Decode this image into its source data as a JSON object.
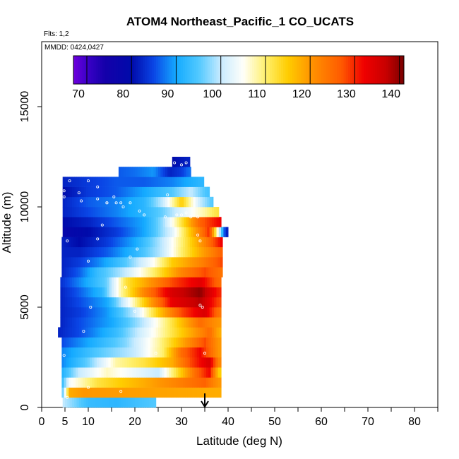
{
  "chart_data": {
    "type": "heatmap",
    "title": "ATOM4 Northeast_Pacific_1 CO_UCATS",
    "flights_label": "Flts: 1,2",
    "dates_label": "MMDD: 0424,0427",
    "xlabel": "Latitude (deg N)",
    "ylabel": "Altitude (m)",
    "xlim": [
      0,
      85
    ],
    "ylim": [
      0,
      18500
    ],
    "x_ticks": [
      0,
      5,
      10,
      20,
      30,
      40,
      50,
      60,
      70,
      80
    ],
    "x_minor_ticks": [
      15,
      25,
      35,
      45,
      55,
      65,
      75,
      85
    ],
    "y_ticks": [
      0,
      5000,
      10000,
      15000
    ],
    "colorbar": {
      "min": 67,
      "max": 141,
      "ticks": [
        70,
        80,
        90,
        100,
        110,
        120,
        130,
        140
      ],
      "placement": "top-inside"
    },
    "marker": {
      "x": 35,
      "y_top": 700,
      "y_bottom": 0,
      "shape": "down-arrow"
    },
    "cells": [
      {
        "alt": 0,
        "segs": [
          [
            4.5,
            100
          ],
          [
            10,
            93
          ],
          [
            16,
            92
          ],
          [
            24,
            95
          ]
        ]
      },
      {
        "alt": 500,
        "segs": [
          [
            4.3,
            93
          ],
          [
            6,
            118
          ],
          [
            9,
            120
          ],
          [
            38,
            118
          ]
        ]
      },
      {
        "alt": 1000,
        "segs": [
          [
            4.3,
            92
          ],
          [
            6,
            104
          ],
          [
            12,
            112
          ],
          [
            22,
            118
          ],
          [
            35,
            126
          ],
          [
            38,
            120
          ]
        ]
      },
      {
        "alt": 1500,
        "segs": [
          [
            4.3,
            91
          ],
          [
            8,
            100
          ],
          [
            14,
            107
          ],
          [
            25,
            100
          ],
          [
            33,
            125
          ],
          [
            36,
            132
          ],
          [
            38,
            115
          ]
        ]
      },
      {
        "alt": 2000,
        "segs": [
          [
            4.3,
            88
          ],
          [
            10,
            96
          ],
          [
            16,
            108
          ],
          [
            22,
            112
          ],
          [
            28,
            118
          ],
          [
            32,
            128
          ],
          [
            36,
            135
          ],
          [
            38,
            122
          ]
        ]
      },
      {
        "alt": 2500,
        "segs": [
          [
            4.3,
            88
          ],
          [
            12,
            95
          ],
          [
            20,
            100
          ],
          [
            26,
            110
          ],
          [
            30,
            125
          ],
          [
            34,
            132
          ],
          [
            38,
            120
          ]
        ]
      },
      {
        "alt": 3000,
        "segs": [
          [
            4.3,
            85
          ],
          [
            10,
            90
          ],
          [
            18,
            97
          ],
          [
            25,
            108
          ],
          [
            30,
            118
          ],
          [
            35,
            128
          ],
          [
            38,
            120
          ]
        ]
      },
      {
        "alt": 3500,
        "segs": [
          [
            3.5,
            82
          ],
          [
            8,
            85
          ],
          [
            16,
            93
          ],
          [
            24,
            105
          ],
          [
            30,
            115
          ],
          [
            36,
            125
          ],
          [
            38,
            118
          ]
        ]
      },
      {
        "alt": 4000,
        "segs": [
          [
            4,
            82
          ],
          [
            8,
            85
          ],
          [
            15,
            90
          ],
          [
            22,
            100
          ],
          [
            28,
            112
          ],
          [
            34,
            125
          ],
          [
            38,
            120
          ]
        ]
      },
      {
        "alt": 4500,
        "segs": [
          [
            4,
            82
          ],
          [
            8,
            84
          ],
          [
            14,
            89
          ],
          [
            20,
            100
          ],
          [
            25,
            115
          ],
          [
            30,
            128
          ],
          [
            35,
            135
          ],
          [
            38,
            124
          ]
        ]
      },
      {
        "alt": 5000,
        "segs": [
          [
            4,
            82
          ],
          [
            8,
            85
          ],
          [
            14,
            90
          ],
          [
            18,
            102
          ],
          [
            23,
            118
          ],
          [
            28,
            133
          ],
          [
            34,
            138
          ],
          [
            38,
            128
          ]
        ]
      },
      {
        "alt": 5500,
        "segs": [
          [
            4,
            82
          ],
          [
            8,
            86
          ],
          [
            13,
            92
          ],
          [
            17,
            108
          ],
          [
            22,
            122
          ],
          [
            28,
            135
          ],
          [
            34,
            140
          ],
          [
            38,
            130
          ]
        ]
      },
      {
        "alt": 6000,
        "segs": [
          [
            4,
            83
          ],
          [
            8,
            88
          ],
          [
            14,
            96
          ],
          [
            18,
            112
          ],
          [
            22,
            118
          ],
          [
            28,
            128
          ],
          [
            34,
            134
          ],
          [
            38,
            125
          ]
        ]
      },
      {
        "alt": 6500,
        "segs": [
          [
            4.3,
            82
          ],
          [
            8,
            86
          ],
          [
            12,
            93
          ],
          [
            18,
            100
          ],
          [
            24,
            110
          ],
          [
            30,
            122
          ],
          [
            35,
            128
          ],
          [
            38.5,
            124
          ]
        ]
      },
      {
        "alt": 7000,
        "segs": [
          [
            4.3,
            82
          ],
          [
            8,
            84
          ],
          [
            12,
            88
          ],
          [
            18,
            95
          ],
          [
            24,
            105
          ],
          [
            28,
            115
          ],
          [
            34,
            122
          ],
          [
            38.5,
            128
          ]
        ]
      },
      {
        "alt": 7500,
        "segs": [
          [
            4.3,
            82
          ],
          [
            8,
            82
          ],
          [
            14,
            86
          ],
          [
            20,
            92
          ],
          [
            26,
            100
          ],
          [
            30,
            110
          ],
          [
            34,
            118
          ],
          [
            38.5,
            126
          ]
        ]
      },
      {
        "alt": 8000,
        "segs": [
          [
            4.3,
            82
          ],
          [
            8,
            80
          ],
          [
            14,
            84
          ],
          [
            20,
            90
          ],
          [
            26,
            100
          ],
          [
            31,
            112
          ],
          [
            35,
            122
          ],
          [
            38.5,
            132
          ]
        ]
      },
      {
        "alt": 8500,
        "segs": [
          [
            4.5,
            78
          ],
          [
            10,
            80
          ],
          [
            16,
            84
          ],
          [
            22,
            90
          ],
          [
            28,
            102
          ],
          [
            32,
            116
          ],
          [
            36,
            130
          ],
          [
            39.5,
            82
          ]
        ]
      },
      {
        "alt": 9000,
        "segs": [
          [
            4.5,
            80
          ],
          [
            10,
            82
          ],
          [
            16,
            86
          ],
          [
            22,
            90
          ],
          [
            26,
            98
          ],
          [
            30,
            112
          ],
          [
            34,
            126
          ],
          [
            38,
            132
          ]
        ]
      },
      {
        "alt": 9500,
        "segs": [
          [
            4.5,
            82
          ],
          [
            10,
            85
          ],
          [
            16,
            88
          ],
          [
            22,
            92
          ],
          [
            26,
            96
          ],
          [
            30,
            102
          ],
          [
            35,
            108
          ],
          [
            37.5,
            112
          ]
        ]
      },
      {
        "alt": 10000,
        "segs": [
          [
            4.5,
            82
          ],
          [
            10,
            86
          ],
          [
            16,
            88
          ],
          [
            22,
            92
          ],
          [
            26,
            100
          ],
          [
            30,
            115
          ],
          [
            34,
            100
          ],
          [
            36.5,
            95
          ]
        ]
      },
      {
        "alt": 10500,
        "segs": [
          [
            4.5,
            80
          ],
          [
            10,
            84
          ],
          [
            16,
            86
          ],
          [
            22,
            90
          ],
          [
            28,
            95
          ],
          [
            32,
            100
          ],
          [
            35.5,
            94
          ]
        ]
      },
      {
        "alt": 11000,
        "segs": [
          [
            4.5,
            82
          ],
          [
            10,
            84
          ],
          [
            16,
            86
          ],
          [
            22,
            86
          ],
          [
            28,
            88
          ],
          [
            34,
            92
          ]
        ]
      },
      {
        "alt": 11500,
        "segs": [
          [
            16.5,
            86
          ],
          [
            20,
            87
          ],
          [
            24,
            89
          ],
          [
            27.5,
            82
          ],
          [
            30,
            84
          ],
          [
            31.5,
            87
          ]
        ]
      },
      {
        "alt": 12000,
        "segs": [
          [
            28,
            80
          ],
          [
            31.5,
            82
          ]
        ]
      }
    ],
    "cell_ranges": [
      [
        4.5,
        24.5
      ],
      [
        4.3,
        38.5
      ],
      [
        4.3,
        38.5
      ],
      [
        4.3,
        38.5
      ],
      [
        4.3,
        38.5
      ],
      [
        4.3,
        38.5
      ],
      [
        4.3,
        38.5
      ],
      [
        3.5,
        38.5
      ],
      [
        4.0,
        38.5
      ],
      [
        4.0,
        38.5
      ],
      [
        4.0,
        38.5
      ],
      [
        4.0,
        38.5
      ],
      [
        4.0,
        38.5
      ],
      [
        4.3,
        38.8
      ],
      [
        4.3,
        38.8
      ],
      [
        4.3,
        38.8
      ],
      [
        4.3,
        38.8
      ],
      [
        4.5,
        40.0
      ],
      [
        4.5,
        38.5
      ],
      [
        4.5,
        38.0
      ],
      [
        4.5,
        36.8
      ],
      [
        4.5,
        36.0
      ],
      [
        4.5,
        34.8
      ],
      [
        16.5,
        32.0
      ],
      [
        28.0,
        31.8
      ]
    ],
    "points": [
      [
        5.5,
        500
      ],
      [
        10,
        1000
      ],
      [
        17,
        800
      ],
      [
        4.8,
        2600
      ],
      [
        9,
        3800
      ],
      [
        10.5,
        5000
      ],
      [
        24.5,
        2700
      ],
      [
        35,
        2700
      ],
      [
        20,
        4800
      ],
      [
        18,
        6000
      ],
      [
        34,
        5100
      ],
      [
        34.5,
        5000
      ],
      [
        5.5,
        8300
      ],
      [
        10,
        7300
      ],
      [
        19,
        7500
      ],
      [
        20.5,
        7900
      ],
      [
        33.5,
        8600
      ],
      [
        4.8,
        10500
      ],
      [
        8.5,
        10300
      ],
      [
        12,
        10400
      ],
      [
        14,
        10200
      ],
      [
        15.5,
        10500
      ],
      [
        17,
        10200
      ],
      [
        19,
        10200
      ],
      [
        21,
        9800
      ],
      [
        22,
        9600
      ],
      [
        26.5,
        9500
      ],
      [
        29,
        9600
      ],
      [
        30,
        9600
      ],
      [
        31,
        9700
      ],
      [
        32,
        9500
      ],
      [
        33.5,
        9500
      ],
      [
        28.5,
        12200
      ],
      [
        30,
        12100
      ],
      [
        31,
        12200
      ],
      [
        10,
        11300
      ],
      [
        12,
        11000
      ],
      [
        14,
        10200
      ],
      [
        8,
        10700
      ],
      [
        6,
        11300
      ],
      [
        4.8,
        10800
      ],
      [
        16,
        10200
      ],
      [
        17.5,
        10000
      ],
      [
        13,
        9100
      ],
      [
        12,
        8400
      ],
      [
        34,
        8300
      ],
      [
        27,
        10600
      ]
    ]
  }
}
